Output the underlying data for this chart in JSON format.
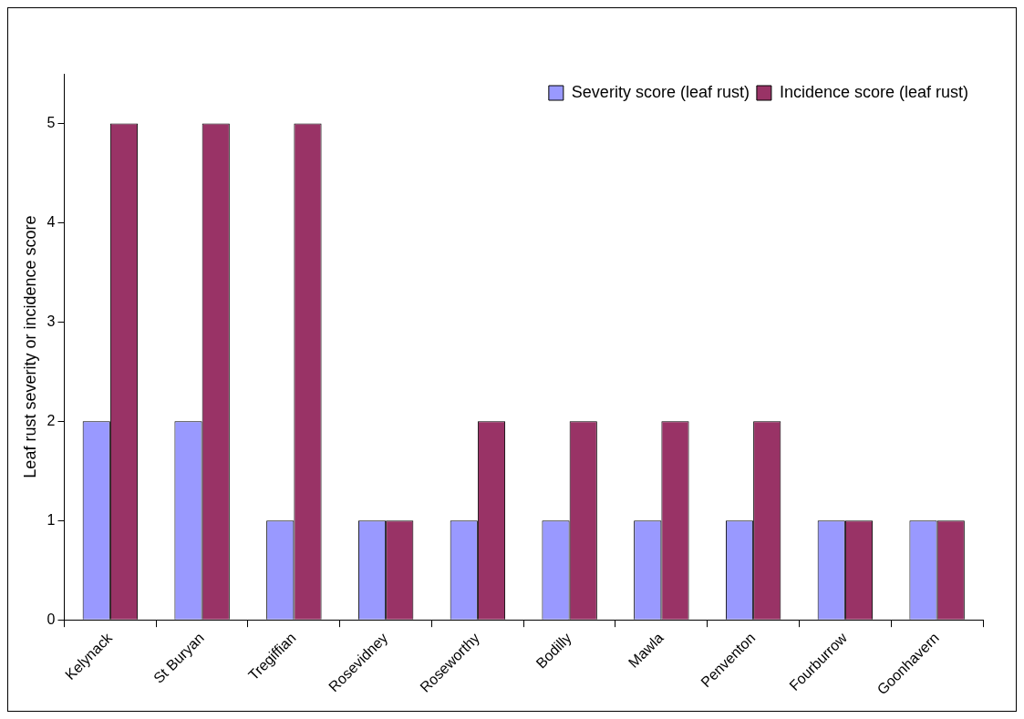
{
  "chart_data": {
    "type": "bar",
    "ylabel": "Leaf rust severity or incidence score",
    "categories": [
      "Kelynack",
      "St Buryan",
      "Tregiffian",
      "Rosevidney",
      "Roseworthy",
      "Bodilly",
      "Mawla",
      "Penventon",
      "Fourburrow",
      "Goonhavern"
    ],
    "series": [
      {
        "name": "Severity score (leaf rust)",
        "color": "#9999ff",
        "values": [
          2,
          2,
          1,
          1,
          1,
          1,
          1,
          1,
          1,
          1
        ]
      },
      {
        "name": "Incidence score (leaf rust)",
        "color": "#993366",
        "values": [
          5,
          5,
          5,
          1,
          2,
          2,
          2,
          2,
          1,
          1
        ]
      }
    ],
    "ylim": [
      0,
      5.5
    ],
    "yticks": [
      0,
      1,
      2,
      3,
      4,
      5
    ],
    "grid": false,
    "legend": "top right"
  }
}
